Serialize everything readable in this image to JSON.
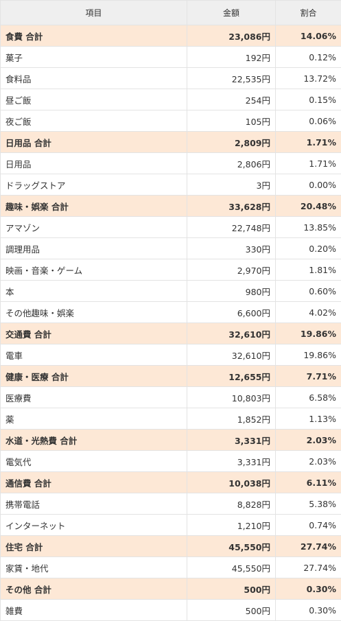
{
  "header": {
    "item": "項目",
    "amount": "金額",
    "ratio": "割合"
  },
  "rows": [
    {
      "type": "total",
      "label": "食費 合計",
      "amount": "23,086円",
      "pct": "14.06%"
    },
    {
      "type": "item",
      "label": "菓子",
      "amount": "192円",
      "pct": "0.12%"
    },
    {
      "type": "item",
      "label": "食料品",
      "amount": "22,535円",
      "pct": "13.72%"
    },
    {
      "type": "item",
      "label": "昼ご飯",
      "amount": "254円",
      "pct": "0.15%"
    },
    {
      "type": "item",
      "label": "夜ご飯",
      "amount": "105円",
      "pct": "0.06%"
    },
    {
      "type": "total",
      "label": "日用品 合計",
      "amount": "2,809円",
      "pct": "1.71%"
    },
    {
      "type": "item",
      "label": "日用品",
      "amount": "2,806円",
      "pct": "1.71%"
    },
    {
      "type": "item",
      "label": "ドラッグストア",
      "amount": "3円",
      "pct": "0.00%"
    },
    {
      "type": "total",
      "label": "趣味・娯楽 合計",
      "amount": "33,628円",
      "pct": "20.48%"
    },
    {
      "type": "item",
      "label": "アマゾン",
      "amount": "22,748円",
      "pct": "13.85%"
    },
    {
      "type": "item",
      "label": "調理用品",
      "amount": "330円",
      "pct": "0.20%"
    },
    {
      "type": "item",
      "label": "映画・音楽・ゲーム",
      "amount": "2,970円",
      "pct": "1.81%"
    },
    {
      "type": "item",
      "label": "本",
      "amount": "980円",
      "pct": "0.60%"
    },
    {
      "type": "item",
      "label": "その他趣味・娯楽",
      "amount": "6,600円",
      "pct": "4.02%"
    },
    {
      "type": "total",
      "label": "交通費 合計",
      "amount": "32,610円",
      "pct": "19.86%"
    },
    {
      "type": "item",
      "label": "電車",
      "amount": "32,610円",
      "pct": "19.86%"
    },
    {
      "type": "total",
      "label": "健康・医療 合計",
      "amount": "12,655円",
      "pct": "7.71%"
    },
    {
      "type": "item",
      "label": "医療費",
      "amount": "10,803円",
      "pct": "6.58%"
    },
    {
      "type": "item",
      "label": "薬",
      "amount": "1,852円",
      "pct": "1.13%"
    },
    {
      "type": "total",
      "label": "水道・光熱費 合計",
      "amount": "3,331円",
      "pct": "2.03%"
    },
    {
      "type": "item",
      "label": "電気代",
      "amount": "3,331円",
      "pct": "2.03%"
    },
    {
      "type": "total",
      "label": "通信費 合計",
      "amount": "10,038円",
      "pct": "6.11%"
    },
    {
      "type": "item",
      "label": "携帯電話",
      "amount": "8,828円",
      "pct": "5.38%"
    },
    {
      "type": "item",
      "label": "インターネット",
      "amount": "1,210円",
      "pct": "0.74%"
    },
    {
      "type": "total",
      "label": "住宅 合計",
      "amount": "45,550円",
      "pct": "27.74%"
    },
    {
      "type": "item",
      "label": "家賃・地代",
      "amount": "45,550円",
      "pct": "27.74%"
    },
    {
      "type": "total",
      "label": "その他 合計",
      "amount": "500円",
      "pct": "0.30%"
    },
    {
      "type": "item",
      "label": "雑費",
      "amount": "500円",
      "pct": "0.30%"
    }
  ],
  "colors": {
    "total_row_bg": "#fde8d6",
    "header_bg": "#efefef",
    "border": "#e3e3e3"
  }
}
